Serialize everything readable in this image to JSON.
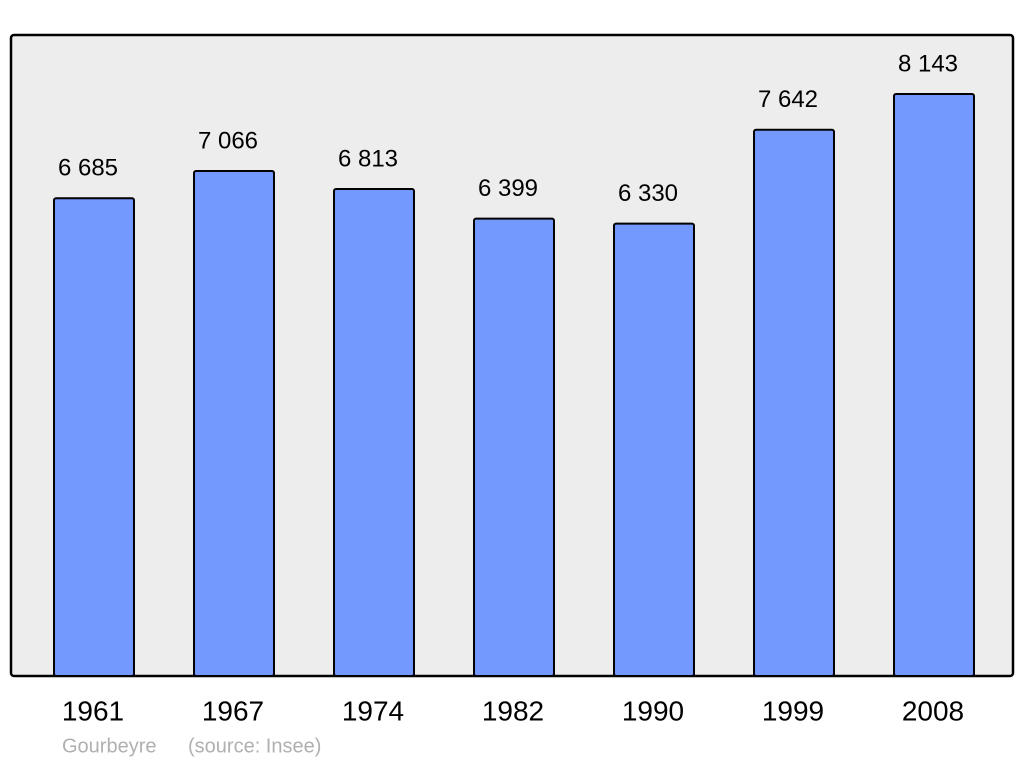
{
  "chart_data": {
    "type": "bar",
    "categories": [
      "1961",
      "1967",
      "1974",
      "1982",
      "1990",
      "1999",
      "2008"
    ],
    "values": [
      6685,
      7066,
      6813,
      6399,
      6330,
      7642,
      8143
    ],
    "value_labels": [
      "6 685",
      "7 066",
      "6 813",
      "6 399",
      "6 330",
      "7 642",
      "8 143"
    ],
    "color": "#7399ff",
    "annotations": [
      "Gourbeyre",
      "(source: Insee)"
    ]
  }
}
